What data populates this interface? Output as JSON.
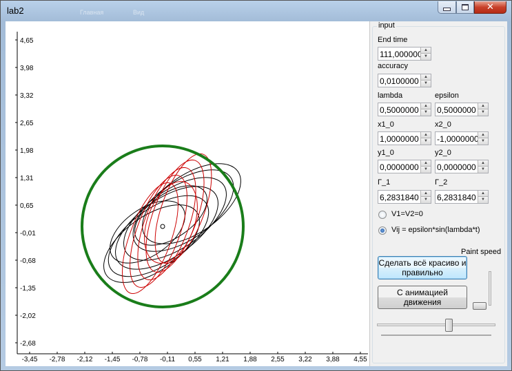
{
  "window": {
    "title": "lab2",
    "ghost_tabs": [
      "Главная",
      "Вид"
    ]
  },
  "plot": {
    "y_ticks": [
      "4,65",
      "3,98",
      "3,32",
      "2,65",
      "1,98",
      "1,31",
      "0,65",
      "-0,01",
      "-0,68",
      "-1,35",
      "-2,02",
      "-2,68"
    ],
    "x_ticks": [
      "-3,45",
      "-2,78",
      "-2,12",
      "-1,45",
      "-0,78",
      "-0,11",
      "0,55",
      "1,21",
      "1,88",
      "2,55",
      "3,22",
      "3,88",
      "4,55"
    ],
    "boundary_color": "#1a7d1a",
    "trajectory1_color": "#000000",
    "trajectory2_color": "#cc0000"
  },
  "panel": {
    "group_title": "input",
    "end_time": {
      "label": "End time",
      "value": "111,000000"
    },
    "accuracy": {
      "label": "accuracy",
      "value": "0,0100000"
    },
    "lambda": {
      "label": "lambda",
      "value": "0,5000000"
    },
    "epsilon": {
      "label": "epsilon",
      "value": "0,5000000"
    },
    "x1_0": {
      "label": "x1_0",
      "value": "1,0000000"
    },
    "x2_0": {
      "label": "x2_0",
      "value": "-1,0000000"
    },
    "y1_0": {
      "label": "y1_0",
      "value": "0,0000000"
    },
    "y2_0": {
      "label": "y2_0",
      "value": "0,0000000"
    },
    "gamma1": {
      "label": "Г_1",
      "value": "6,2831840"
    },
    "gamma2": {
      "label": "Г_2",
      "value": "6,2831840"
    },
    "radio1": {
      "label": "V1=V2=0",
      "checked": false
    },
    "radio2": {
      "label": "Vij = epsilon*sin(lambda*t)",
      "checked": true
    },
    "paint_speed_label": "Paint speed",
    "button_draw": "Сделать всё красиво и правильно",
    "button_animate": "С анимацией движения",
    "paint_speed_value": 0.1,
    "time_slider_value": 0.62
  }
}
